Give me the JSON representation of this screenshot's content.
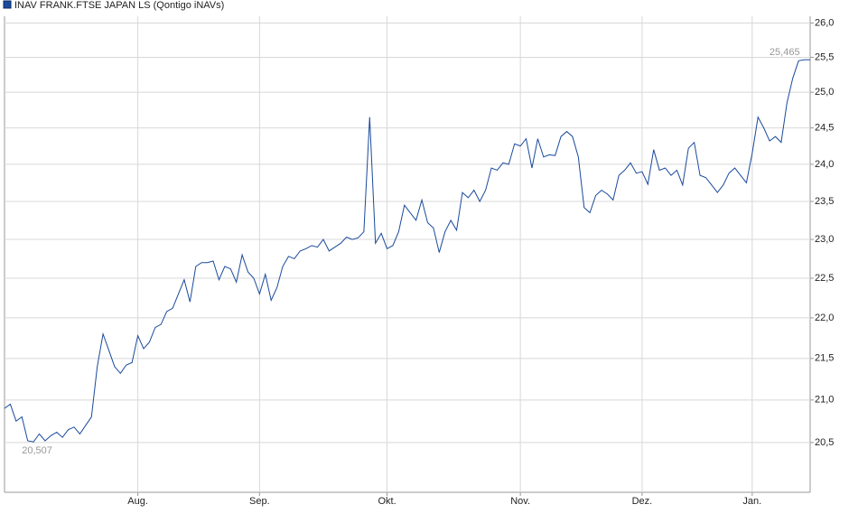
{
  "chart_data": {
    "type": "line",
    "log_scale": true,
    "grid": true,
    "legend_position": "top-left",
    "series": [
      {
        "name": "INAV FRANK.FTSE JAPAN LS (Qontigo iNAVs)",
        "color": "#1a4a9c",
        "values": [
          20.9,
          20.95,
          20.75,
          20.8,
          20.52,
          20.507,
          20.6,
          20.52,
          20.58,
          20.62,
          20.56,
          20.65,
          20.68,
          20.6,
          20.7,
          20.8,
          21.4,
          21.8,
          21.6,
          21.4,
          21.32,
          21.42,
          21.45,
          21.78,
          21.62,
          21.7,
          21.88,
          21.92,
          22.08,
          22.12,
          22.3,
          22.48,
          22.2,
          22.65,
          22.7,
          22.7,
          22.72,
          22.48,
          22.65,
          22.62,
          22.45,
          22.8,
          22.58,
          22.5,
          22.3,
          22.55,
          22.22,
          22.38,
          22.65,
          22.78,
          22.75,
          22.85,
          22.88,
          22.92,
          22.9,
          23.0,
          22.85,
          22.9,
          22.95,
          23.03,
          23.0,
          23.02,
          23.1,
          24.65,
          22.95,
          23.08,
          22.88,
          22.92,
          23.1,
          23.45,
          23.35,
          23.25,
          23.52,
          23.22,
          23.15,
          22.83,
          23.1,
          23.25,
          23.12,
          23.62,
          23.55,
          23.65,
          23.5,
          23.65,
          23.95,
          23.92,
          24.02,
          24.0,
          24.28,
          24.25,
          24.35,
          23.95,
          24.35,
          24.1,
          24.13,
          24.12,
          24.38,
          24.45,
          24.38,
          24.1,
          23.42,
          23.35,
          23.58,
          23.65,
          23.6,
          23.52,
          23.85,
          23.92,
          24.02,
          23.88,
          23.9,
          23.73,
          24.2,
          23.92,
          23.95,
          23.85,
          23.92,
          23.72,
          24.22,
          24.3,
          23.85,
          23.82,
          23.72,
          23.62,
          23.72,
          23.88,
          23.95,
          23.85,
          23.75,
          24.15,
          24.65,
          24.5,
          24.32,
          24.38,
          24.3,
          24.85,
          25.2,
          25.45,
          25.465,
          25.465
        ]
      }
    ],
    "categories": [
      null,
      null,
      null,
      null,
      null,
      null,
      null,
      null,
      null,
      null,
      null,
      null,
      null,
      null,
      null,
      null,
      null,
      null,
      null,
      null,
      null,
      null,
      null,
      "Aug.",
      null,
      null,
      null,
      null,
      null,
      null,
      null,
      null,
      null,
      null,
      null,
      null,
      null,
      null,
      null,
      null,
      null,
      null,
      null,
      null,
      "Sep.",
      null,
      null,
      null,
      null,
      null,
      null,
      null,
      null,
      null,
      null,
      null,
      null,
      null,
      null,
      null,
      null,
      null,
      null,
      null,
      null,
      null,
      "Okt.",
      null,
      null,
      null,
      null,
      null,
      null,
      null,
      null,
      null,
      null,
      null,
      null,
      null,
      null,
      null,
      null,
      null,
      null,
      null,
      null,
      null,
      null,
      "Nov.",
      null,
      null,
      null,
      null,
      null,
      null,
      null,
      null,
      null,
      null,
      null,
      null,
      null,
      null,
      null,
      null,
      null,
      null,
      null,
      null,
      "Dez.",
      null,
      null,
      null,
      null,
      null,
      null,
      null,
      null,
      null,
      null,
      null,
      null,
      null,
      null,
      null,
      null,
      null,
      null,
      "Jan.",
      null,
      null,
      null,
      null,
      null,
      null,
      null,
      null,
      null,
      null
    ],
    "ylim": [
      19.93,
      26.1
    ],
    "yticks": [
      {
        "value": 20.5,
        "label": "20,5"
      },
      {
        "value": 21,
        "label": "21,0"
      },
      {
        "value": 21.5,
        "label": "21,5"
      },
      {
        "value": 22,
        "label": "22,0"
      },
      {
        "value": 22.5,
        "label": "22,5"
      },
      {
        "value": 23,
        "label": "23,0"
      },
      {
        "value": 23.5,
        "label": "23,5"
      },
      {
        "value": 24,
        "label": "24,0"
      },
      {
        "value": 24.5,
        "label": "24,5"
      },
      {
        "value": 25,
        "label": "25,0"
      },
      {
        "value": 25.5,
        "label": "25,5"
      },
      {
        "value": 26,
        "label": "26,0"
      }
    ],
    "min_label": "20,507",
    "max_label": "25,465"
  }
}
